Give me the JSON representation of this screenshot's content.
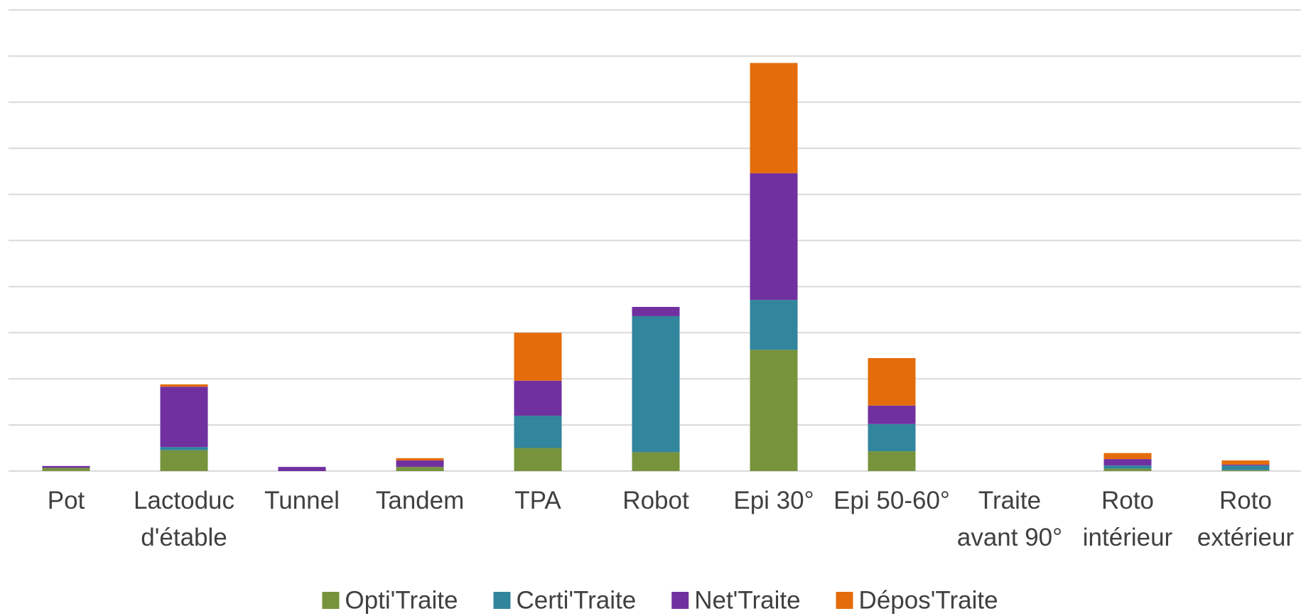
{
  "chart_data": {
    "type": "stacked_bar",
    "categories": [
      "Pot",
      "Lactoduc d'étable",
      "Tunnel",
      "Tandem",
      "TPA",
      "Robot",
      "Epi 30°",
      "Epi 50-60°",
      "Traite avant 90°",
      "Roto intérieur",
      "Roto extérieur"
    ],
    "series": [
      {
        "name": "Opti'Traite",
        "color": "#77933c",
        "values": [
          0.07,
          0.45,
          0,
          0.09,
          0.5,
          0.41,
          2.63,
          0.43,
          0,
          0.05,
          0.02
        ]
      },
      {
        "name": "Certi'Traite",
        "color": "#31859c",
        "values": [
          0,
          0.07,
          0,
          0,
          0.7,
          2.95,
          1.08,
          0.59,
          0,
          0.07,
          0.1
        ]
      },
      {
        "name": "Net'Traite",
        "color": "#7030a0",
        "values": [
          0.04,
          1.31,
          0.09,
          0.14,
          0.76,
          0.2,
          2.75,
          0.4,
          0,
          0.14,
          0.02
        ]
      },
      {
        "name": "Dépos'Traite",
        "color": "#e46c0a",
        "values": [
          0,
          0.05,
          0,
          0.05,
          1.04,
          0,
          2.39,
          1.03,
          0,
          0.13,
          0.09
        ]
      }
    ],
    "ylim": [
      0,
      10
    ],
    "yticks": [
      0,
      1,
      2,
      3,
      4,
      5,
      6,
      7,
      8,
      9,
      10
    ],
    "grid": true,
    "legend": "bottom"
  }
}
